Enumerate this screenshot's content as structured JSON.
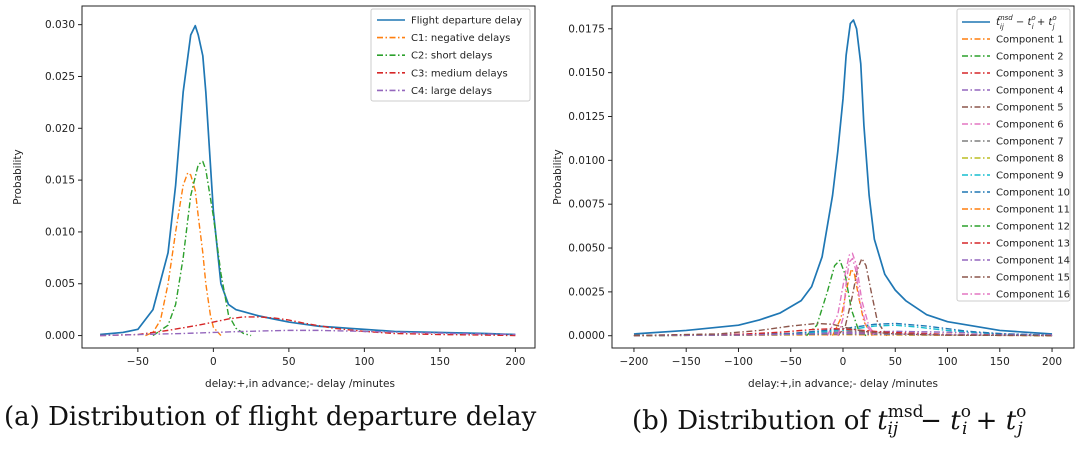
{
  "chart_data": [
    {
      "type": "line",
      "panel_tag": "(a)",
      "caption": "Distribution of flight departure delay",
      "xlabel": "delay:+,in advance;- delay /minutes",
      "ylabel": "Probability",
      "xlim": [
        -87,
        213
      ],
      "ylim": [
        -0.0012,
        0.0318
      ],
      "xticks": [
        -50,
        0,
        50,
        100,
        150,
        200
      ],
      "xtick_labels": [
        "−50",
        "0",
        "50",
        "100",
        "150",
        "200"
      ],
      "yticks": [
        0.0,
        0.005,
        0.01,
        0.015,
        0.02,
        0.025,
        0.03
      ],
      "ytick_labels": [
        "0.000",
        "0.005",
        "0.010",
        "0.015",
        "0.020",
        "0.025",
        "0.030"
      ],
      "legend_position": "top-right",
      "series": [
        {
          "name": "Flight departure delay",
          "style": "solid",
          "color": "#1f77b4",
          "x": [
            -75,
            -60,
            -50,
            -40,
            -30,
            -25,
            -20,
            -15,
            -12,
            -10,
            -7,
            -5,
            0,
            5,
            10,
            15,
            20,
            30,
            40,
            50,
            60,
            70,
            80,
            90,
            100,
            120,
            150,
            180,
            200
          ],
          "y": [
            0.0001,
            0.0003,
            0.0006,
            0.0025,
            0.008,
            0.0145,
            0.0235,
            0.029,
            0.0299,
            0.029,
            0.027,
            0.0235,
            0.012,
            0.005,
            0.003,
            0.0025,
            0.0023,
            0.0019,
            0.0016,
            0.0013,
            0.0011,
            0.0009,
            0.0008,
            0.0007,
            0.0006,
            0.0004,
            0.0003,
            0.0002,
            0.0001
          ]
        },
        {
          "name": "C1: negative delays",
          "style": "dashdot",
          "color": "#ff7f0e",
          "x": [
            -45,
            -40,
            -35,
            -30,
            -25,
            -20,
            -17,
            -15,
            -12,
            -10,
            -7,
            -5,
            -2,
            0,
            5
          ],
          "y": [
            0.0,
            0.0003,
            0.0015,
            0.005,
            0.01,
            0.0145,
            0.0157,
            0.0155,
            0.014,
            0.0115,
            0.008,
            0.005,
            0.002,
            0.0008,
            0.0
          ]
        },
        {
          "name": "C2: short delays",
          "style": "dashdot",
          "color": "#2ca02c",
          "x": [
            -40,
            -30,
            -25,
            -20,
            -15,
            -10,
            -7,
            -5,
            0,
            5,
            10,
            15,
            20,
            25
          ],
          "y": [
            0.0,
            0.001,
            0.003,
            0.0075,
            0.0135,
            0.0165,
            0.0168,
            0.016,
            0.0115,
            0.006,
            0.002,
            0.0007,
            0.0002,
            0.0
          ]
        },
        {
          "name": "C3: medium delays",
          "style": "dashdot",
          "color": "#d62728",
          "x": [
            -75,
            -50,
            -30,
            -10,
            0,
            10,
            20,
            30,
            40,
            50,
            60,
            80,
            100,
            120,
            150,
            180,
            200
          ],
          "y": [
            0.0,
            0.0001,
            0.0005,
            0.001,
            0.0013,
            0.0016,
            0.0018,
            0.0018,
            0.0017,
            0.0015,
            0.0012,
            0.0007,
            0.0004,
            0.0002,
            0.0001,
            5e-05,
            0.0
          ]
        },
        {
          "name": "C4: large delays",
          "style": "dashdot",
          "color": "#9467bd",
          "x": [
            -75,
            -50,
            -20,
            0,
            20,
            50,
            70,
            100,
            130,
            160,
            200
          ],
          "y": [
            0.0,
            0.0001,
            0.0002,
            0.0003,
            0.0004,
            0.0005,
            0.0005,
            0.0004,
            0.0003,
            0.0002,
            0.0001
          ]
        }
      ]
    },
    {
      "type": "line",
      "panel_tag": "(b)",
      "caption": "Distribution of",
      "caption_math": {
        "base": "t",
        "sub_1": "ij",
        "sup_1": "msd",
        "minus": "−",
        "t_i": "t",
        "sub_2": "i",
        "sup_2": "o",
        "plus": "+",
        "t_j": "t",
        "sub_3": "j",
        "sup_3": "o"
      },
      "xlabel": "delay:+,in advance;- delay /minutes",
      "ylabel": "Probability",
      "xlim": [
        -221,
        221
      ],
      "ylim": [
        -0.0007,
        0.0188
      ],
      "xticks": [
        -200,
        -150,
        -100,
        -50,
        0,
        50,
        100,
        150,
        200
      ],
      "xtick_labels": [
        "−200",
        "−150",
        "−100",
        "−50",
        "0",
        "50",
        "100",
        "150",
        "200"
      ],
      "yticks": [
        0.0,
        0.0025,
        0.005,
        0.0075,
        0.01,
        0.0125,
        0.015,
        0.0175
      ],
      "ytick_labels": [
        "0.0000",
        "0.0025",
        "0.0050",
        "0.0075",
        "0.0100",
        "0.0125",
        "0.0150",
        "0.0175"
      ],
      "legend_position": "top-right",
      "legend_first": {
        "t": "t",
        "sub": "ij",
        "sup": "msd",
        "rest": " − t",
        "sup2": "o",
        "sub2": "i",
        "plus": " + t",
        "sup3": "o",
        "sub3": "j"
      },
      "series": [
        {
          "name": "",
          "legend_math": true,
          "style": "solid",
          "color": "#1f77b4",
          "x": [
            -200,
            -150,
            -100,
            -80,
            -60,
            -40,
            -30,
            -20,
            -10,
            -5,
            0,
            3,
            7,
            10,
            13,
            17,
            20,
            25,
            30,
            40,
            50,
            60,
            80,
            100,
            150,
            200
          ],
          "y": [
            0.0001,
            0.0003,
            0.0006,
            0.0009,
            0.0013,
            0.002,
            0.0028,
            0.0045,
            0.008,
            0.0105,
            0.0135,
            0.016,
            0.0178,
            0.018,
            0.0175,
            0.0155,
            0.012,
            0.008,
            0.0055,
            0.0035,
            0.0026,
            0.002,
            0.0012,
            0.0008,
            0.0003,
            0.0001
          ]
        },
        {
          "name": "Component 1",
          "style": "dashdot",
          "color": "#ff7f0e",
          "x": [
            -10,
            -2,
            4,
            8,
            11,
            15,
            20,
            28
          ],
          "y": [
            0.0,
            0.001,
            0.0028,
            0.0038,
            0.0035,
            0.0022,
            0.0008,
            0.0
          ]
        },
        {
          "name": "Component 2",
          "style": "dashdot",
          "color": "#2ca02c",
          "x": [
            -35,
            -25,
            -15,
            -8,
            -3,
            2,
            8,
            15,
            22
          ],
          "y": [
            0.0,
            0.0006,
            0.0025,
            0.004,
            0.0043,
            0.0035,
            0.0015,
            0.0003,
            0.0
          ]
        },
        {
          "name": "Component 3",
          "style": "dashdot",
          "color": "#d62728",
          "x": [
            -200,
            -100,
            -50,
            0,
            50,
            100,
            200
          ],
          "y": [
            2e-05,
            5e-05,
            0.0001,
            0.0002,
            0.00012,
            5e-05,
            2e-05
          ]
        },
        {
          "name": "Component 4",
          "style": "dashdot",
          "color": "#9467bd",
          "x": [
            -200,
            -100,
            0,
            50,
            100,
            150,
            200
          ],
          "y": [
            2e-05,
            8e-05,
            0.00018,
            0.00025,
            0.0002,
            0.00012,
            5e-05
          ]
        },
        {
          "name": "Component 5",
          "style": "dashdot",
          "color": "#8c564b",
          "x": [
            -5,
            2,
            8,
            14,
            18,
            22,
            27,
            33,
            42
          ],
          "y": [
            0.0,
            0.0005,
            0.002,
            0.0038,
            0.0044,
            0.004,
            0.0025,
            0.0008,
            0.0
          ]
        },
        {
          "name": "Component 6",
          "style": "dashdot",
          "color": "#e377c2",
          "x": [
            -15,
            -5,
            2,
            6,
            9,
            13,
            18,
            25,
            32
          ],
          "y": [
            0.0,
            0.0012,
            0.0035,
            0.0046,
            0.0047,
            0.004,
            0.002,
            0.0005,
            0.0
          ]
        },
        {
          "name": "Component 7",
          "style": "dashdot",
          "color": "#7f7f7f",
          "x": [
            -200,
            -100,
            -60,
            -30,
            0,
            30,
            60,
            100,
            200
          ],
          "y": [
            1e-05,
            5e-05,
            0.0001,
            0.0002,
            0.0003,
            0.0002,
            0.0001,
            5e-05,
            1e-05
          ]
        },
        {
          "name": "Component 8",
          "style": "dashdot",
          "color": "#bcbd22",
          "x": [
            -200,
            -100,
            0,
            100,
            200
          ],
          "y": [
            1e-05,
            3e-05,
            8e-05,
            4e-05,
            1e-05
          ]
        },
        {
          "name": "Component 9",
          "style": "dashdot",
          "color": "#17becf",
          "x": [
            -200,
            -100,
            -50,
            0,
            30,
            50,
            70,
            100,
            150,
            200
          ],
          "y": [
            1e-05,
            3e-05,
            0.0001,
            0.0003,
            0.00055,
            0.0006,
            0.0005,
            0.0003,
            0.0001,
            3e-05
          ]
        },
        {
          "name": "Component 10",
          "style": "dashdot",
          "color": "#1f77b4",
          "x": [
            -200,
            -100,
            -50,
            0,
            30,
            50,
            80,
            120,
            160,
            200
          ],
          "y": [
            1e-05,
            4e-05,
            0.00012,
            0.0004,
            0.00065,
            0.0007,
            0.00055,
            0.00025,
            8e-05,
            2e-05
          ]
        },
        {
          "name": "Component 11",
          "style": "dashdot",
          "color": "#ff7f0e",
          "x": [
            -200,
            -100,
            0,
            100,
            200
          ],
          "y": [
            1e-05,
            3e-05,
            6e-05,
            3e-05,
            1e-05
          ]
        },
        {
          "name": "Component 12",
          "style": "dashdot",
          "color": "#2ca02c",
          "x": [
            -200,
            -100,
            0,
            100,
            200
          ],
          "y": [
            1e-05,
            4e-05,
            0.0001,
            5e-05,
            1e-05
          ]
        },
        {
          "name": "Component 13",
          "style": "dashdot",
          "color": "#d62728",
          "x": [
            -200,
            -100,
            -60,
            -30,
            -10,
            10,
            40,
            100,
            200
          ],
          "y": [
            1e-05,
            8e-05,
            0.0002,
            0.00035,
            0.0004,
            0.00035,
            0.0002,
            8e-05,
            1e-05
          ]
        },
        {
          "name": "Component 14",
          "style": "dashdot",
          "color": "#9467bd",
          "x": [
            -200,
            -100,
            0,
            100,
            200
          ],
          "y": [
            1e-05,
            4e-05,
            0.00012,
            6e-05,
            2e-05
          ]
        },
        {
          "name": "Component 15",
          "style": "dashdot",
          "color": "#8c564b",
          "x": [
            -200,
            -120,
            -80,
            -50,
            -25,
            -10,
            0,
            20,
            50,
            100,
            200
          ],
          "y": [
            1e-05,
            0.0001,
            0.0003,
            0.00055,
            0.0007,
            0.00065,
            0.0005,
            0.00025,
            0.0001,
            3e-05,
            1e-05
          ]
        },
        {
          "name": "Component 16",
          "style": "dashdot",
          "color": "#e377c2",
          "x": [
            -5,
            0,
            3,
            6,
            9,
            12,
            16,
            22,
            30
          ],
          "y": [
            0.0,
            0.001,
            0.003,
            0.0042,
            0.0044,
            0.0038,
            0.002,
            0.0006,
            0.0
          ]
        }
      ]
    }
  ]
}
